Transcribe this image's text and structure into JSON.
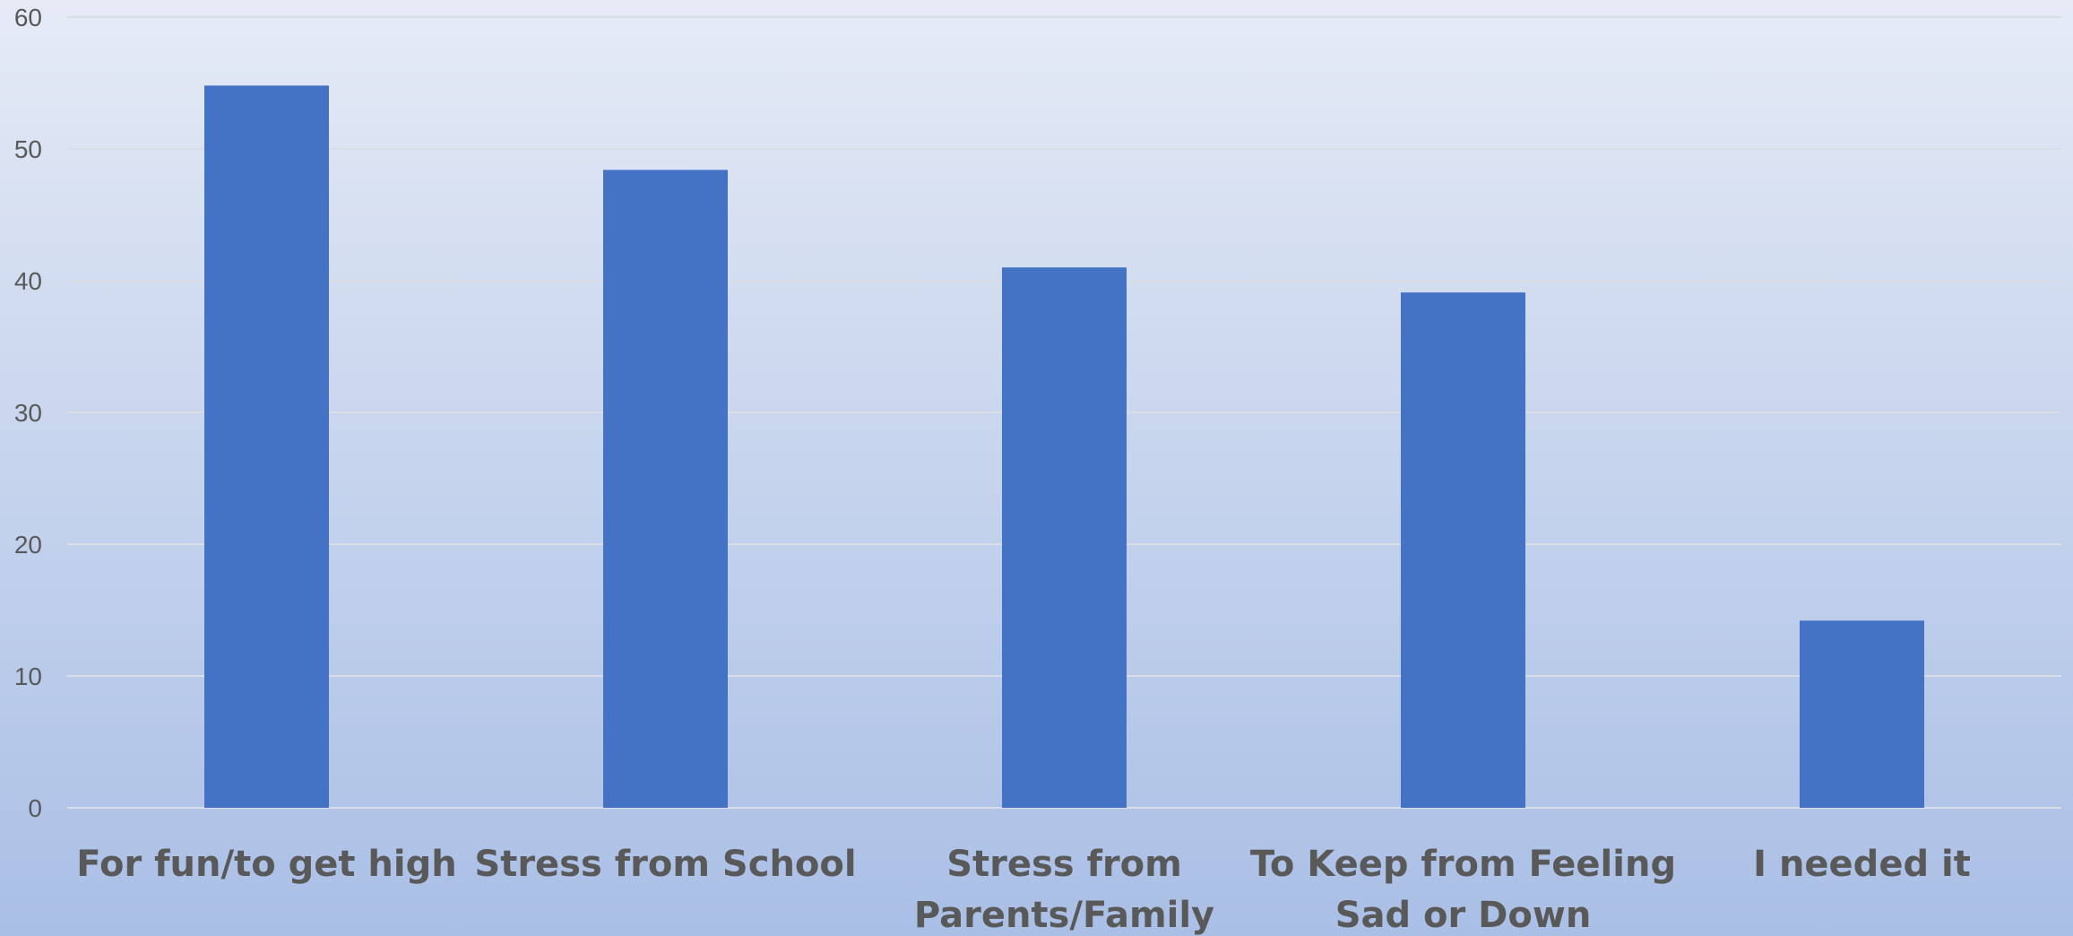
{
  "chart_data": {
    "type": "bar",
    "categories": [
      [
        "For fun/to get high"
      ],
      [
        "Stress from School"
      ],
      [
        "Stress from",
        "Parents/Family"
      ],
      [
        "To Keep from Feeling",
        "Sad or Down"
      ],
      [
        "I needed it"
      ]
    ],
    "values": [
      54.8,
      48.4,
      41.0,
      39.1,
      14.2
    ],
    "ylim": [
      0,
      60
    ],
    "yticks": [
      0,
      10,
      20,
      30,
      40,
      50,
      60
    ],
    "grid": true,
    "bar_color": "#4472c4",
    "grid_color": "#d9dde6",
    "text_color": "#595959",
    "title": "",
    "xlabel": "",
    "ylabel": ""
  }
}
